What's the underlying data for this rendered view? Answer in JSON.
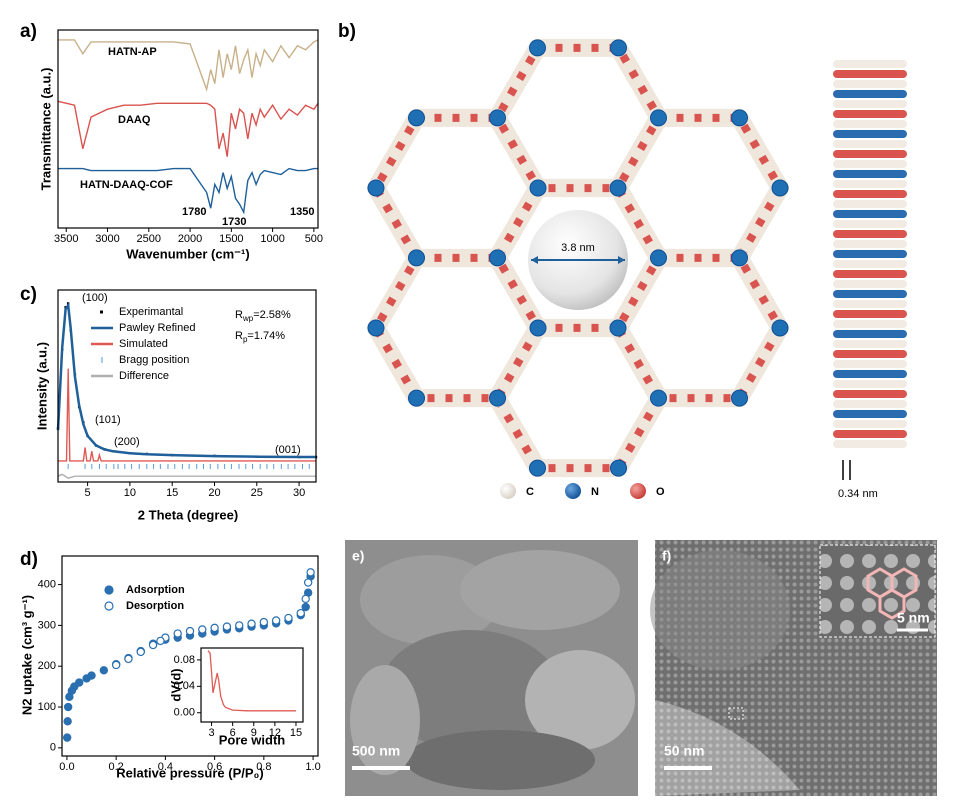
{
  "chart_data": [
    {
      "type": "line",
      "panel_label": "a)",
      "xlabel": "Wavenumber (cm⁻¹)",
      "ylabel": "Transmittance (a.u.)",
      "xlim": [
        3600,
        450
      ],
      "xticks": [
        3500,
        3000,
        2500,
        2000,
        1500,
        1000,
        500
      ],
      "ylim": [
        0,
        100
      ],
      "x": [
        3600,
        3400,
        3300,
        3200,
        3000,
        2800,
        2600,
        2400,
        2200,
        2000,
        1800,
        1750,
        1700,
        1650,
        1600,
        1550,
        1500,
        1450,
        1400,
        1350,
        1300,
        1250,
        1200,
        1150,
        1100,
        1000,
        900,
        800,
        700,
        600,
        500,
        450
      ],
      "series": [
        {
          "name": "HATN-AP",
          "color": "#c8b08a",
          "mode": "line",
          "values": [
            95,
            95,
            88,
            94,
            94,
            94,
            94,
            94,
            94,
            93,
            70,
            80,
            73,
            90,
            76,
            88,
            80,
            92,
            78,
            85,
            90,
            76,
            88,
            82,
            90,
            84,
            92,
            86,
            92,
            90,
            94,
            95
          ]
        },
        {
          "name": "DAAQ",
          "color": "#d9534f",
          "mode": "line",
          "values": [
            64,
            62,
            40,
            56,
            60,
            62,
            62,
            63,
            63,
            63,
            63,
            62,
            60,
            40,
            48,
            36,
            58,
            50,
            60,
            58,
            45,
            58,
            52,
            60,
            56,
            62,
            55,
            60,
            57,
            62,
            60,
            63
          ]
        },
        {
          "name": "HATN-DAAQ-COF",
          "color": "#1f5f9a",
          "mode": "line",
          "values": [
            30,
            30,
            30,
            29,
            29,
            29,
            29,
            29,
            30,
            30,
            18,
            10,
            22,
            18,
            28,
            20,
            26,
            15,
            12,
            8,
            24,
            28,
            22,
            27,
            29,
            28,
            27,
            30,
            29,
            29,
            30,
            30
          ]
        }
      ],
      "annotations": [
        "1780",
        "1730",
        "1350"
      ]
    },
    {
      "type": "line",
      "panel_label": "c)",
      "xlabel": "2 Theta (degree)",
      "ylabel": "Intensity (a.u.)",
      "xlim": [
        1.5,
        32
      ],
      "xticks": [
        5,
        10,
        15,
        20,
        25,
        30
      ],
      "ylim": [
        0,
        100
      ],
      "series": [
        {
          "name": "Experimantal",
          "color": "#000000",
          "mode": "markers",
          "x": [
            1.5,
            2,
            2.4,
            2.7,
            3,
            3.5,
            4,
            4.5,
            5,
            6,
            7,
            8,
            10,
            12,
            15,
            20,
            25,
            30,
            32
          ],
          "values": [
            28,
            69,
            91,
            93,
            79,
            56,
            39,
            31,
            24,
            19,
            17,
            16,
            15,
            14.6,
            14,
            13.6,
            13.2,
            13,
            13
          ]
        },
        {
          "name": "Pawley Refined",
          "color": "#1f5f9a",
          "mode": "line",
          "x": [
            1.5,
            2,
            2.4,
            2.7,
            3,
            3.5,
            4,
            4.5,
            5,
            6,
            7,
            8,
            10,
            12,
            15,
            20,
            25,
            30,
            32
          ],
          "values": [
            27,
            70,
            90,
            92,
            80,
            55,
            40,
            30,
            24,
            19,
            17,
            16,
            15,
            14.5,
            14,
            13.5,
            13.2,
            13,
            13
          ]
        },
        {
          "name": "Simulated",
          "color": "#e05a55",
          "mode": "line",
          "x": [
            1.5,
            2.5,
            2.7,
            2.9,
            4.5,
            4.7,
            4.9,
            5.3,
            5.5,
            5.7,
            6.2,
            6.4,
            6.6,
            8,
            32
          ],
          "values": [
            11,
            11,
            59,
            11,
            11,
            18,
            11,
            11,
            16,
            11,
            11,
            14,
            11,
            11,
            11
          ]
        },
        {
          "name": "Bragg position",
          "color": "#5b9bd5",
          "mode": "ticks",
          "x": [
            2.7,
            4.7,
            5.5,
            6.4,
            7.2,
            8.1,
            8.6,
            9.4,
            10.2,
            11.1,
            12,
            12.8,
            13.6,
            14.5,
            15.3,
            16.2,
            17,
            17.9,
            18.7,
            19.5,
            20.4,
            21.2,
            22,
            22.9,
            23.7,
            24.5,
            25.4,
            26.2,
            27,
            27.9,
            28.7,
            29.5,
            30.4,
            31.2
          ]
        },
        {
          "name": "Difference",
          "color": "#b0b0b0",
          "mode": "line",
          "x": [
            1.5,
            2,
            2.7,
            3.5,
            5,
            10,
            20,
            32
          ],
          "values": [
            3,
            4,
            2,
            3,
            3,
            3,
            3,
            3
          ]
        }
      ],
      "peak_labels": [
        "(100)",
        "(101)",
        "(200)",
        "(001)"
      ],
      "fit_stats": [
        {
          "symbol": "R",
          "subscript": "wp",
          "value": "=2.58%"
        },
        {
          "symbol": "R",
          "subscript": "p",
          "value": "=1.74%"
        }
      ]
    },
    {
      "type": "scatter",
      "panel_label": "d)",
      "xlabel": "Relative pressure (P/P₀)",
      "ylabel": "N2 uptake (cm³ g⁻¹)",
      "xlim": [
        -0.02,
        1.02
      ],
      "xticks": [
        {
          "value": 0,
          "label": "0.0"
        },
        {
          "value": 0.2,
          "label": "0.2"
        },
        {
          "value": 0.4,
          "label": "0.4"
        },
        {
          "value": 0.6,
          "label": "0.6"
        },
        {
          "value": 0.8,
          "label": "0.8"
        },
        {
          "value": 1,
          "label": "1.0"
        }
      ],
      "ylim": [
        -20,
        470
      ],
      "yticks": [
        0,
        100,
        200,
        300,
        400
      ],
      "series": [
        {
          "name": "Adsorption",
          "color": "#2a6fb0",
          "mode": "filled-circle",
          "x": [
            0.001,
            0.003,
            0.005,
            0.01,
            0.02,
            0.03,
            0.05,
            0.08,
            0.1,
            0.15,
            0.2,
            0.25,
            0.3,
            0.35,
            0.4,
            0.45,
            0.5,
            0.55,
            0.6,
            0.65,
            0.7,
            0.75,
            0.8,
            0.85,
            0.9,
            0.95,
            0.97,
            0.98,
            0.99
          ],
          "values": [
            25,
            65,
            100,
            125,
            140,
            150,
            160,
            170,
            177,
            190,
            205,
            220,
            237,
            255,
            265,
            270,
            275,
            280,
            285,
            290,
            293,
            297,
            300,
            305,
            312,
            325,
            345,
            380,
            420
          ]
        },
        {
          "name": "Desorption",
          "color": "#2a6fb0",
          "mode": "open-circle",
          "x": [
            0.99,
            0.98,
            0.97,
            0.95,
            0.9,
            0.85,
            0.8,
            0.75,
            0.7,
            0.65,
            0.6,
            0.55,
            0.5,
            0.45,
            0.4,
            0.38,
            0.35,
            0.3,
            0.25,
            0.2
          ],
          "values": [
            430,
            405,
            365,
            330,
            318,
            312,
            308,
            304,
            300,
            297,
            294,
            290,
            286,
            280,
            270,
            262,
            252,
            235,
            218,
            203
          ]
        }
      ]
    },
    {
      "type": "line",
      "xlabel": "Pore width",
      "ylabel": "dV(d)",
      "xlim": [
        1.5,
        16
      ],
      "xticks": [
        3,
        6,
        9,
        12,
        15
      ],
      "ylim": [
        -0.014,
        0.098
      ],
      "yticks": [
        {
          "value": 0,
          "label": "0.00"
        },
        {
          "value": 0.04,
          "label": "0.04"
        },
        {
          "value": 0.08,
          "label": "0.08"
        }
      ],
      "series": [
        {
          "color": "#e05a55",
          "mode": "line",
          "x": [
            2.5,
            2.8,
            3,
            3.2,
            3.5,
            3.8,
            4,
            4.3,
            4.7,
            5,
            6,
            8,
            10,
            12,
            15
          ],
          "values": [
            0.094,
            0.09,
            0.06,
            0.03,
            0.045,
            0.06,
            0.05,
            0.025,
            0.012,
            0.008,
            0.004,
            0.003,
            0.003,
            0.003,
            0.003
          ]
        }
      ]
    }
  ],
  "structure": {
    "panel_label": "b)",
    "pore_size": "3.8 nm",
    "legend": [
      "C",
      "N",
      "O"
    ],
    "layer_spacing": "0.34 nm"
  },
  "tem_low": {
    "panel_label": "e)",
    "scale_bar": "500 nm"
  },
  "tem_high": {
    "panel_label": "f)",
    "scale_bar": "50 nm",
    "inset_scale_bar": "5 nm"
  }
}
